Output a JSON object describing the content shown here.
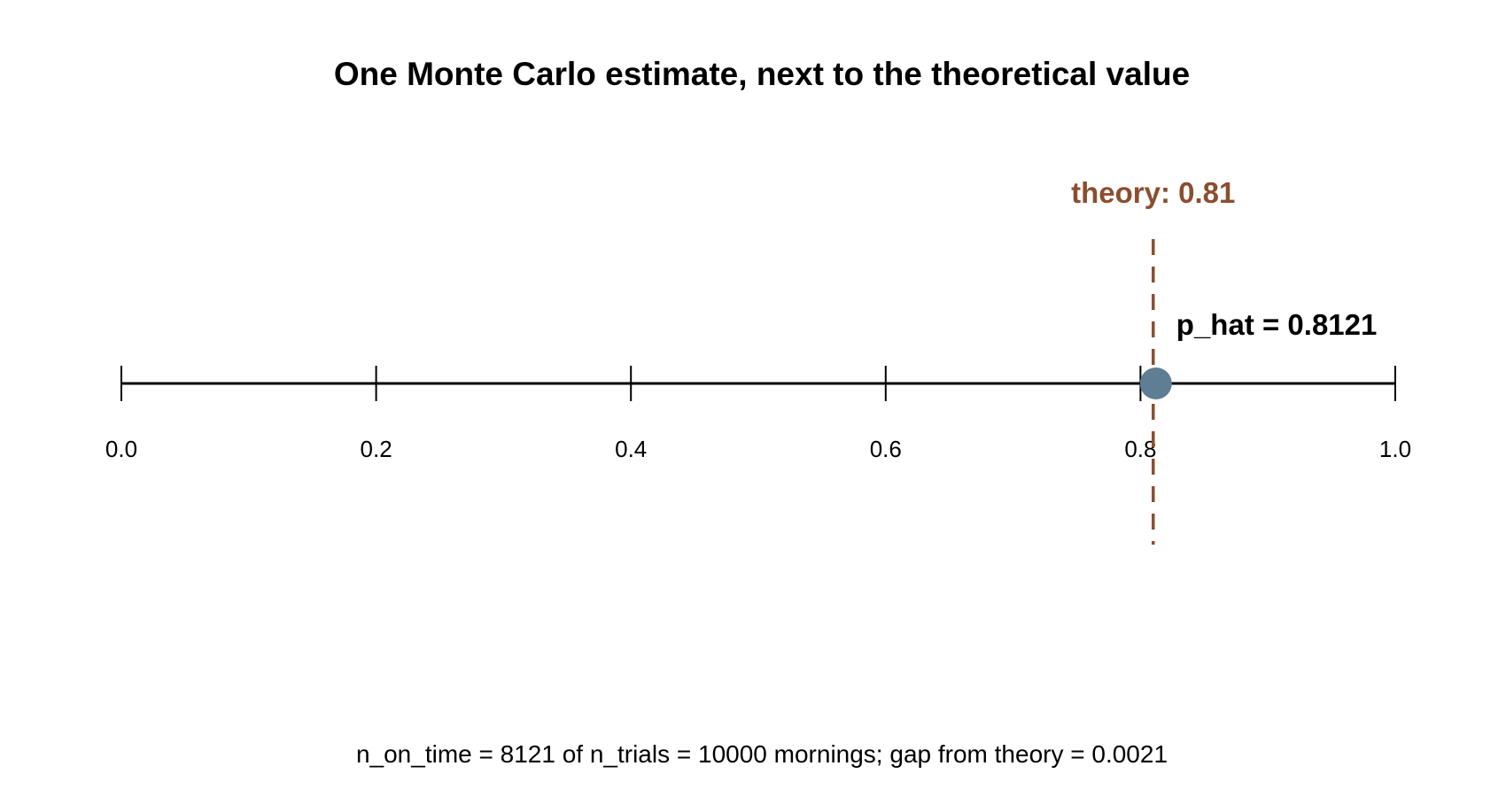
{
  "chart_data": {
    "type": "scatter",
    "title": "One Monte Carlo estimate, next to the theoretical value",
    "xlim": [
      0.0,
      1.0
    ],
    "x_ticks": [
      0.0,
      0.2,
      0.4,
      0.6,
      0.8,
      1.0
    ],
    "x_tick_labels": [
      "0.0",
      "0.2",
      "0.4",
      "0.6",
      "0.8",
      "1.0"
    ],
    "grid": false,
    "reference_line": {
      "x": 0.81,
      "label": "theory: 0.81",
      "color": "#8B4E2E",
      "style": "dashed"
    },
    "estimate_point": {
      "x": 0.8121,
      "label": "p_hat = 0.8121",
      "color": "#5F7E94"
    },
    "footnote": "n_on_time = 8121 of n_trials = 10000 mornings; gap from theory = 0.0021"
  }
}
